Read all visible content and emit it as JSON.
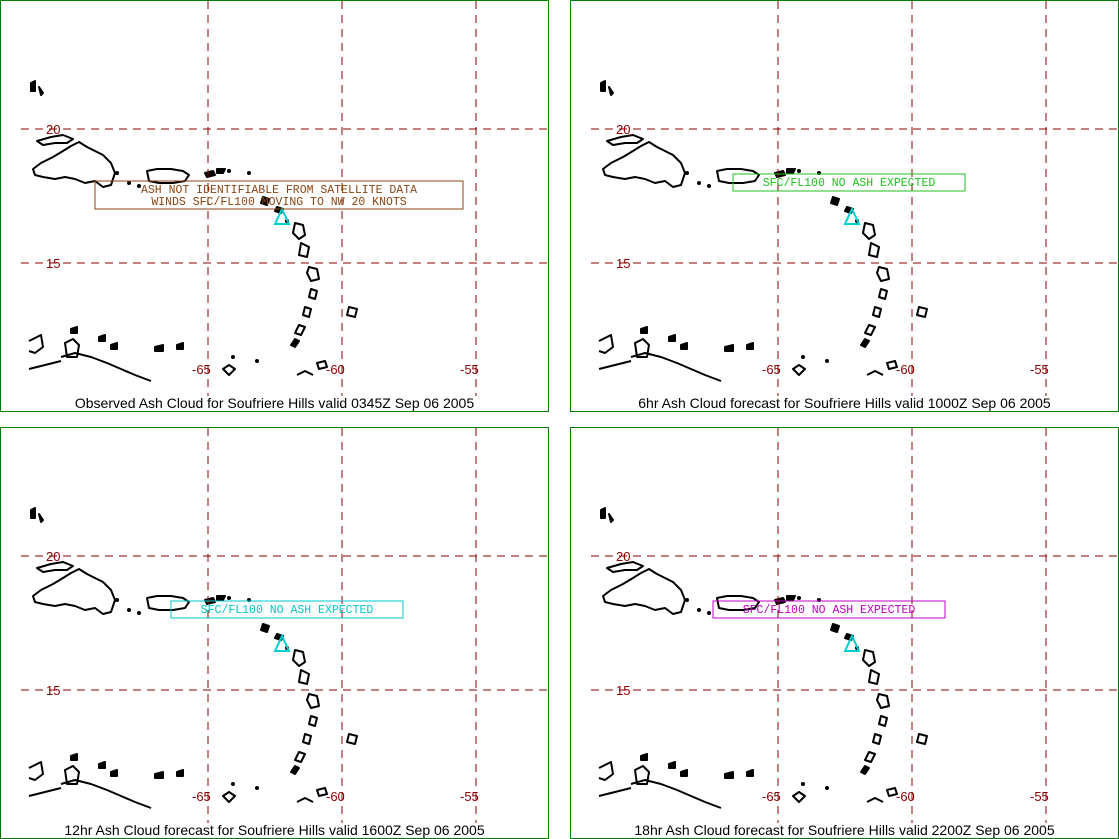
{
  "map": {
    "lat_lines": [
      20,
      15
    ],
    "lon_lines": [
      -65,
      -60,
      -55
    ],
    "lat_labels": [
      "20",
      "15"
    ],
    "lon_labels": [
      "-65",
      "-60",
      "-55"
    ],
    "grid_color": "#8b0000",
    "border_color": "#008000",
    "volcano_color": "#00d0d0",
    "volcano_name": "Soufriere Hills"
  },
  "panels": [
    {
      "caption": "Observed Ash Cloud for Soufriere  Hills valid 0345Z Sep 06 2005",
      "advisory_color": "#8b4513",
      "advisory_lines": [
        "ASH NOT IDENTIFIABLE FROM SATELLITE DATA",
        "WINDS SFC/FL100 MOVING TO NW 20 KNOTS"
      ]
    },
    {
      "caption": "6hr Ash Cloud forecast for Soufriere  Hills valid 1000Z Sep 06 2005",
      "advisory_color": "#20c020",
      "advisory_lines": [
        "SFC/FL100 NO ASH EXPECTED"
      ]
    },
    {
      "caption": "12hr Ash Cloud forecast for Soufriere  Hills valid 1600Z Sep 06 2005",
      "advisory_color": "#00c8c8",
      "advisory_lines": [
        "SFC/FL100 NO ASH EXPECTED"
      ]
    },
    {
      "caption": "18hr Ash Cloud forecast for Soufriere  Hills valid 2200Z Sep 06 2005",
      "advisory_color": "#c000c0",
      "advisory_lines": [
        "SFC/FL100 NO ASH EXPECTED"
      ]
    }
  ]
}
